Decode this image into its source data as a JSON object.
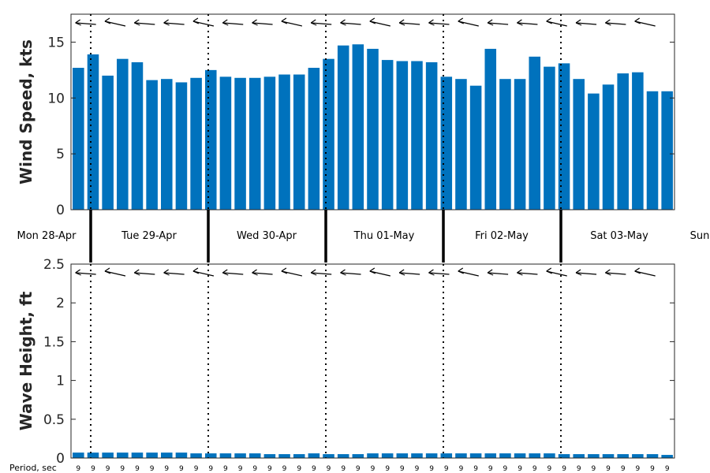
{
  "chart_data": [
    {
      "type": "bar",
      "panel": "wind",
      "ylabel": "Wind Speed, kts",
      "ylim": [
        0,
        17.5
      ],
      "yticks": [
        "0",
        "5",
        "10",
        "15"
      ],
      "color": "#0072BD",
      "values": [
        12.7,
        13.9,
        12.0,
        13.5,
        13.2,
        11.6,
        11.7,
        11.4,
        11.8,
        12.5,
        11.9,
        11.8,
        11.8,
        11.9,
        12.1,
        12.1,
        12.7,
        13.5,
        14.7,
        14.8,
        14.4,
        13.4,
        13.3,
        13.3,
        13.2,
        11.9,
        11.7,
        11.1,
        14.4,
        11.7,
        11.7,
        13.7,
        12.8,
        13.1,
        11.7,
        10.4,
        11.2,
        12.2,
        12.3,
        10.6,
        10.6
      ],
      "direction_arrows": true
    },
    {
      "type": "bar",
      "panel": "wave",
      "ylabel": "Wave Height, ft",
      "ylim": [
        0,
        2.5
      ],
      "yticks": [
        "0",
        "0.5",
        "1",
        "1.5",
        "2",
        "2.5"
      ],
      "color": "#0072BD",
      "values": [
        0.07,
        0.07,
        0.07,
        0.07,
        0.07,
        0.07,
        0.07,
        0.07,
        0.06,
        0.06,
        0.06,
        0.06,
        0.06,
        0.05,
        0.05,
        0.05,
        0.06,
        0.05,
        0.05,
        0.05,
        0.06,
        0.06,
        0.06,
        0.06,
        0.06,
        0.06,
        0.06,
        0.06,
        0.06,
        0.06,
        0.06,
        0.06,
        0.06,
        0.05,
        0.05,
        0.05,
        0.05,
        0.05,
        0.05,
        0.05,
        0.04
      ],
      "direction_arrows": true
    }
  ],
  "days": [
    "Mon 28-Apr",
    "Tue 29-Apr",
    "Wed 30-Apr",
    "Thu 01-May",
    "Fri 02-May",
    "Sat 03-May",
    "Sun"
  ],
  "period_label": "Period, sec",
  "periods": [
    "9",
    "9",
    "9",
    "9",
    "9",
    "9",
    "9",
    "9",
    "9",
    "9",
    "9",
    "9",
    "9",
    "9",
    "9",
    "9",
    "9",
    "9",
    "9",
    "9",
    "9",
    "9",
    "9",
    "9",
    "9",
    "9",
    "9",
    "9",
    "9",
    "9",
    "9",
    "9",
    "9",
    "9",
    "9",
    "9",
    "9",
    "9",
    "9",
    "9",
    "9"
  ]
}
